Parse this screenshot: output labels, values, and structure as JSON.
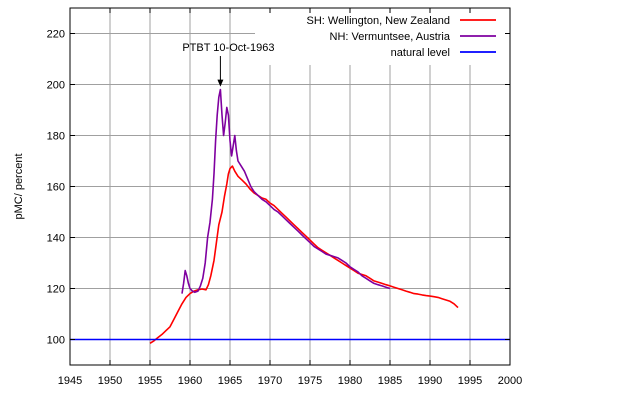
{
  "chart_data": {
    "type": "line",
    "ylabel": "pMC/ percent",
    "xlim": [
      1945,
      2000
    ],
    "ylim": [
      90,
      230
    ],
    "x_ticks": [
      1945,
      1950,
      1955,
      1960,
      1965,
      1970,
      1975,
      1980,
      1985,
      1990,
      1995,
      2000
    ],
    "y_ticks": [
      100,
      120,
      140,
      160,
      180,
      200,
      220
    ],
    "grid": true,
    "legend_position": "top-right",
    "annotation": {
      "text": "PTBT 10-Oct-1963",
      "x": 1963.8,
      "y": 198
    },
    "series": [
      {
        "name": "SH: Wellington, New Zealand",
        "color": "#ff0000",
        "points": [
          [
            1955.0,
            98.5
          ],
          [
            1955.5,
            99.5
          ],
          [
            1956.0,
            100.8
          ],
          [
            1956.5,
            102.0
          ],
          [
            1957.0,
            103.5
          ],
          [
            1957.5,
            105.0
          ],
          [
            1958.0,
            108.0
          ],
          [
            1958.5,
            111.0
          ],
          [
            1959.0,
            114.0
          ],
          [
            1959.5,
            116.5
          ],
          [
            1960.0,
            118.0
          ],
          [
            1960.5,
            119.0
          ],
          [
            1961.0,
            119.5
          ],
          [
            1961.5,
            119.8
          ],
          [
            1962.0,
            119.5
          ],
          [
            1962.3,
            121.5
          ],
          [
            1962.6,
            125.0
          ],
          [
            1963.0,
            131.0
          ],
          [
            1963.3,
            138.0
          ],
          [
            1963.6,
            145.0
          ],
          [
            1964.0,
            150.0
          ],
          [
            1964.3,
            156.0
          ],
          [
            1964.6,
            161.0
          ],
          [
            1964.8,
            165.0
          ],
          [
            1965.0,
            167.0
          ],
          [
            1965.3,
            168.0
          ],
          [
            1965.6,
            166.0
          ],
          [
            1966.0,
            164.0
          ],
          [
            1966.5,
            162.5
          ],
          [
            1967.0,
            161.0
          ],
          [
            1967.5,
            159.0
          ],
          [
            1968.0,
            157.5
          ],
          [
            1968.5,
            156.5
          ],
          [
            1969.0,
            155.5
          ],
          [
            1969.5,
            155.0
          ],
          [
            1970.0,
            153.5
          ],
          [
            1970.5,
            152.5
          ],
          [
            1971.0,
            151.0
          ],
          [
            1971.5,
            149.5
          ],
          [
            1972.0,
            148.0
          ],
          [
            1972.5,
            146.5
          ],
          [
            1973.0,
            145.0
          ],
          [
            1973.5,
            143.5
          ],
          [
            1974.0,
            142.0
          ],
          [
            1974.5,
            140.5
          ],
          [
            1975.0,
            139.0
          ],
          [
            1975.5,
            137.5
          ],
          [
            1976.0,
            136.0
          ],
          [
            1976.5,
            135.0
          ],
          [
            1977.0,
            134.0
          ],
          [
            1977.5,
            133.0
          ],
          [
            1978.0,
            132.0
          ],
          [
            1978.5,
            131.0
          ],
          [
            1979.0,
            130.0
          ],
          [
            1979.5,
            129.0
          ],
          [
            1980.0,
            128.0
          ],
          [
            1980.5,
            127.0
          ],
          [
            1981.0,
            126.0
          ],
          [
            1981.5,
            125.5
          ],
          [
            1982.0,
            125.0
          ],
          [
            1982.5,
            124.0
          ],
          [
            1983.0,
            123.0
          ],
          [
            1983.5,
            122.5
          ],
          [
            1984.0,
            122.0
          ],
          [
            1984.5,
            121.5
          ],
          [
            1985.0,
            121.0
          ],
          [
            1985.5,
            120.5
          ],
          [
            1986.0,
            120.0
          ],
          [
            1986.5,
            119.5
          ],
          [
            1987.0,
            119.0
          ],
          [
            1987.5,
            118.5
          ],
          [
            1988.0,
            118.0
          ],
          [
            1988.5,
            117.8
          ],
          [
            1989.0,
            117.5
          ],
          [
            1989.5,
            117.2
          ],
          [
            1990.0,
            117.0
          ],
          [
            1990.5,
            116.8
          ],
          [
            1991.0,
            116.5
          ],
          [
            1991.5,
            116.0
          ],
          [
            1992.0,
            115.5
          ],
          [
            1992.5,
            115.0
          ],
          [
            1993.0,
            114.0
          ],
          [
            1993.5,
            112.5
          ]
        ]
      },
      {
        "name": "NH: Vermuntsee, Austria",
        "color": "#7f00a0",
        "points": [
          [
            1959.0,
            118.0
          ],
          [
            1959.2,
            122.0
          ],
          [
            1959.4,
            127.0
          ],
          [
            1959.6,
            125.0
          ],
          [
            1959.8,
            122.0
          ],
          [
            1960.0,
            120.0
          ],
          [
            1960.3,
            119.0
          ],
          [
            1960.6,
            118.5
          ],
          [
            1961.0,
            119.0
          ],
          [
            1961.3,
            121.0
          ],
          [
            1961.6,
            124.0
          ],
          [
            1961.9,
            130.0
          ],
          [
            1962.2,
            140.0
          ],
          [
            1962.5,
            146.0
          ],
          [
            1962.8,
            155.0
          ],
          [
            1963.0,
            165.0
          ],
          [
            1963.2,
            178.0
          ],
          [
            1963.4,
            188.0
          ],
          [
            1963.6,
            195.0
          ],
          [
            1963.8,
            198.0
          ],
          [
            1964.0,
            188.0
          ],
          [
            1964.2,
            180.0
          ],
          [
            1964.4,
            185.0
          ],
          [
            1964.6,
            191.0
          ],
          [
            1964.8,
            188.0
          ],
          [
            1965.0,
            178.0
          ],
          [
            1965.2,
            172.0
          ],
          [
            1965.4,
            176.0
          ],
          [
            1965.6,
            180.0
          ],
          [
            1965.8,
            174.0
          ],
          [
            1966.0,
            170.0
          ],
          [
            1966.4,
            168.0
          ],
          [
            1966.8,
            166.0
          ],
          [
            1967.2,
            163.0
          ],
          [
            1967.6,
            160.0
          ],
          [
            1968.0,
            158.0
          ],
          [
            1968.5,
            156.5
          ],
          [
            1969.0,
            155.0
          ],
          [
            1969.5,
            154.0
          ],
          [
            1970.0,
            152.5
          ],
          [
            1970.5,
            151.0
          ],
          [
            1971.0,
            150.0
          ],
          [
            1971.5,
            148.5
          ],
          [
            1972.0,
            147.0
          ],
          [
            1972.5,
            145.5
          ],
          [
            1973.0,
            144.0
          ],
          [
            1973.5,
            142.5
          ],
          [
            1974.0,
            141.0
          ],
          [
            1974.5,
            139.5
          ],
          [
            1975.0,
            138.0
          ],
          [
            1975.5,
            136.5
          ],
          [
            1976.0,
            135.5
          ],
          [
            1976.5,
            134.5
          ],
          [
            1977.0,
            133.5
          ],
          [
            1977.5,
            133.0
          ],
          [
            1978.0,
            132.5
          ],
          [
            1978.5,
            132.0
          ],
          [
            1979.0,
            131.0
          ],
          [
            1979.5,
            130.0
          ],
          [
            1980.0,
            128.5
          ],
          [
            1980.5,
            127.5
          ],
          [
            1981.0,
            126.5
          ],
          [
            1981.5,
            125.0
          ],
          [
            1982.0,
            124.0
          ],
          [
            1982.5,
            123.0
          ],
          [
            1983.0,
            122.0
          ],
          [
            1983.5,
            121.5
          ],
          [
            1984.0,
            121.0
          ],
          [
            1984.5,
            120.5
          ],
          [
            1985.0,
            120.0
          ]
        ]
      },
      {
        "name": "natural level",
        "color": "#0000ff",
        "points": [
          [
            1945,
            100
          ],
          [
            2000,
            100
          ]
        ]
      }
    ]
  }
}
